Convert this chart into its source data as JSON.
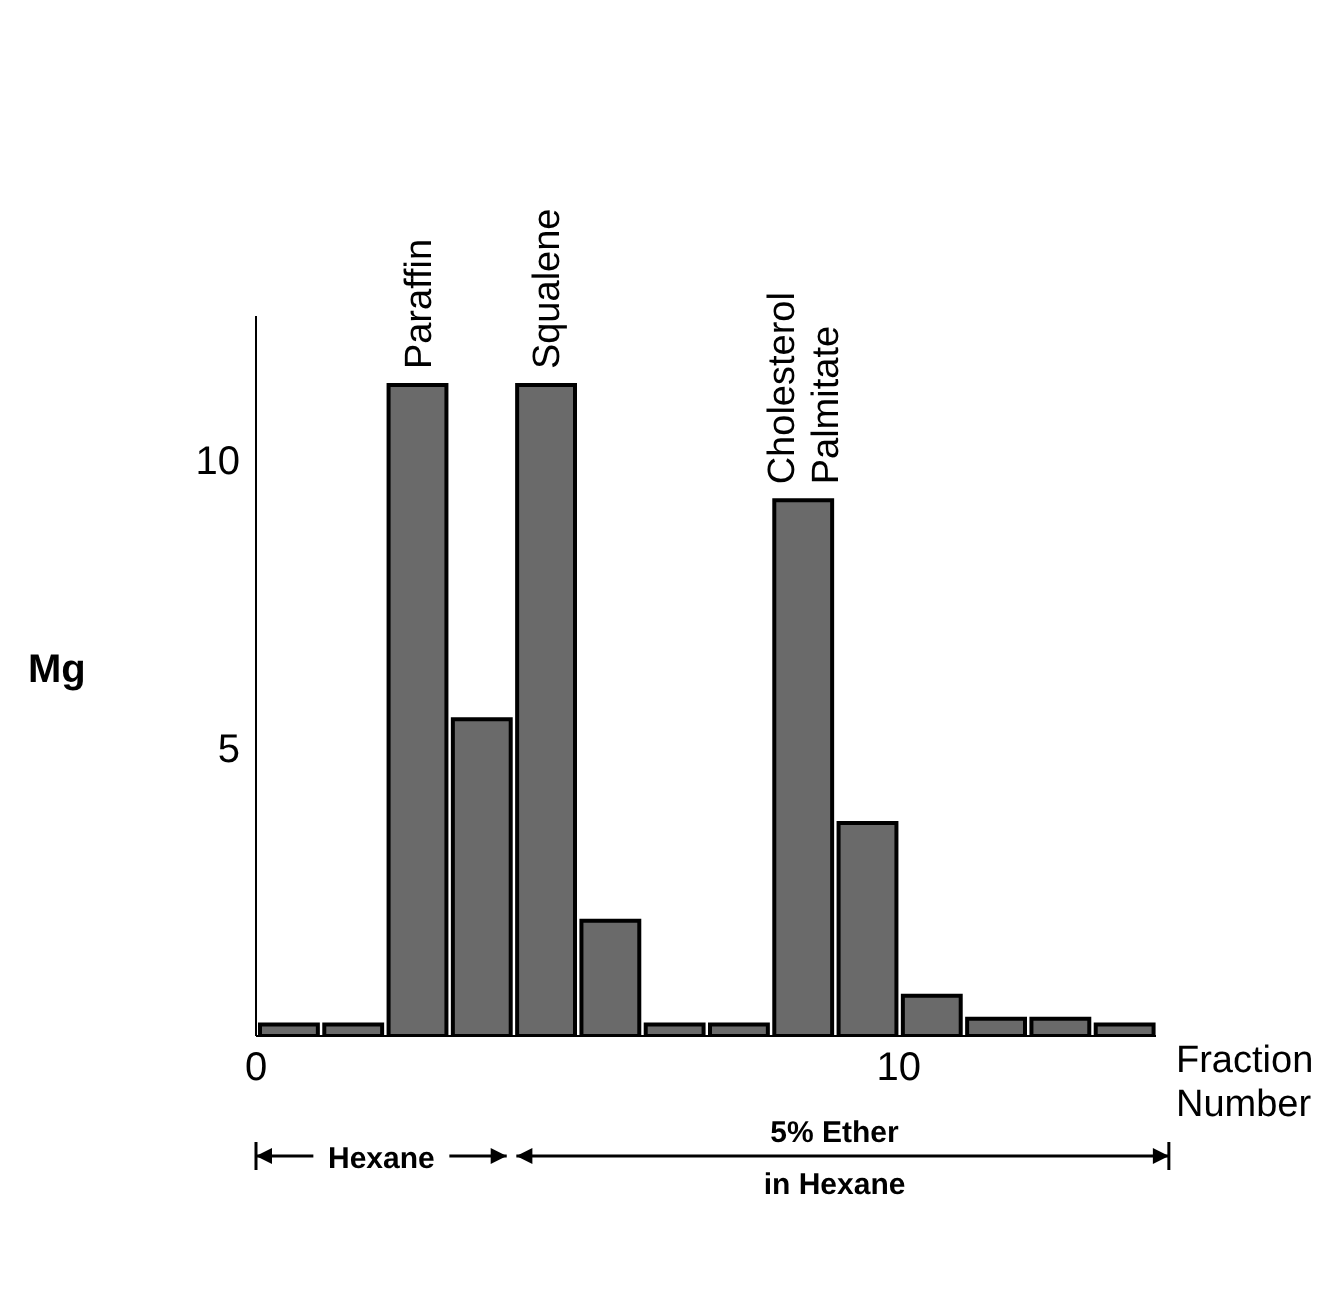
{
  "chart_data": {
    "type": "histogram",
    "xlabel": "Fraction Number",
    "ylabel": "Mg",
    "bins": [
      0,
      1,
      2,
      3,
      4,
      5,
      6,
      7,
      8,
      9,
      10,
      11,
      12,
      13,
      14
    ],
    "values": [
      0.2,
      0.2,
      11.3,
      5.5,
      11.3,
      2,
      0.2,
      0.2,
      9.3,
      3.7,
      0.7,
      0.3,
      0.3,
      0.2
    ],
    "color": "#6a6a6a",
    "xlim": [
      0,
      14
    ],
    "xticks": [
      0,
      10
    ],
    "ylim": [
      0,
      12.5
    ],
    "yticks": [
      5,
      10
    ],
    "grid": false,
    "annotations": [
      {
        "text": "Paraffin",
        "x": 2.5,
        "y": 11.3
      },
      {
        "text": "Squalene",
        "x": 4.5,
        "y": 11.3
      },
      {
        "text": "Cholesterol Palmitate",
        "x": 8.5,
        "y": 9.3
      },
      "Hexane",
      "5% Ether in Hexane"
    ]
  }
}
